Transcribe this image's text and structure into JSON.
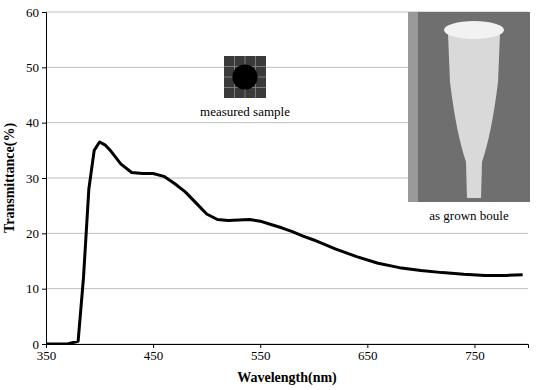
{
  "chart_data": {
    "type": "line",
    "x_label": "Wavelength(nm)",
    "y_label": "Transmittance(%)",
    "x": [
      350,
      370,
      380,
      385,
      390,
      395,
      400,
      405,
      410,
      420,
      430,
      440,
      450,
      460,
      470,
      480,
      490,
      500,
      510,
      520,
      530,
      540,
      550,
      560,
      570,
      580,
      590,
      600,
      620,
      640,
      660,
      680,
      700,
      720,
      740,
      760,
      780,
      795
    ],
    "values": [
      0,
      0,
      0.5,
      12,
      28,
      35,
      36.5,
      36,
      35,
      32.5,
      31,
      30.8,
      30.8,
      30.3,
      29,
      27.5,
      25.5,
      23.5,
      22.5,
      22.3,
      22.4,
      22.5,
      22.2,
      21.6,
      21,
      20.3,
      19.5,
      18.8,
      17.2,
      15.8,
      14.6,
      13.8,
      13.3,
      12.9,
      12.6,
      12.4,
      12.4,
      12.5
    ],
    "color": "#000000",
    "xlim": [
      350,
      800
    ],
    "xticks": [
      350,
      450,
      550,
      650,
      750
    ],
    "ylim": [
      0,
      60
    ],
    "yticks": [
      0,
      10,
      20,
      30,
      40,
      50,
      60
    ],
    "grid": true,
    "annotations": [
      "measured sample",
      "as grown boule"
    ]
  }
}
